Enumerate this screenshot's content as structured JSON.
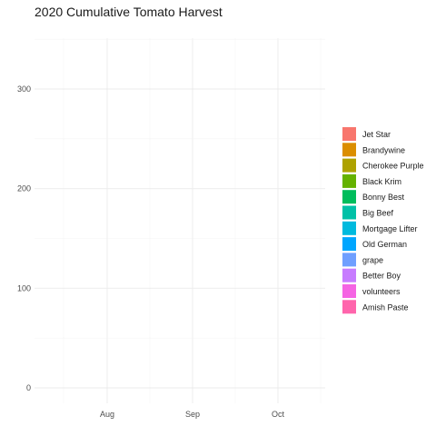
{
  "chart_data": {
    "type": "area",
    "title": "2020 Cumulative Tomato Harvest",
    "xlabel": "",
    "ylabel": "",
    "x_ticks": [
      "Aug",
      "Sep",
      "Oct"
    ],
    "ylim": [
      0,
      350
    ],
    "y_ticks": [
      0,
      100,
      200,
      300
    ],
    "grid": true,
    "legend_position": "right",
    "series": [
      {
        "name": "Jet Star",
        "color": "#F8766D",
        "values": []
      },
      {
        "name": "Brandywine",
        "color": "#DB8E00",
        "values": []
      },
      {
        "name": "Cherokee Purple",
        "color": "#AEA200",
        "values": []
      },
      {
        "name": "Black Krim",
        "color": "#64B200",
        "values": []
      },
      {
        "name": "Bonny Best",
        "color": "#00BD5C",
        "values": []
      },
      {
        "name": "Big Beef",
        "color": "#00C1A7",
        "values": []
      },
      {
        "name": "Mortgage Lifter",
        "color": "#00BADE",
        "values": []
      },
      {
        "name": "Old German",
        "color": "#00A6FF",
        "values": []
      },
      {
        "name": "grape",
        "color": "#6F9FFF",
        "values": []
      },
      {
        "name": "Better Boy",
        "color": "#C77CFF",
        "values": []
      },
      {
        "name": "volunteers",
        "color": "#F564E3",
        "values": []
      },
      {
        "name": "Amish Paste",
        "color": "#FF65AC",
        "values": []
      }
    ]
  }
}
